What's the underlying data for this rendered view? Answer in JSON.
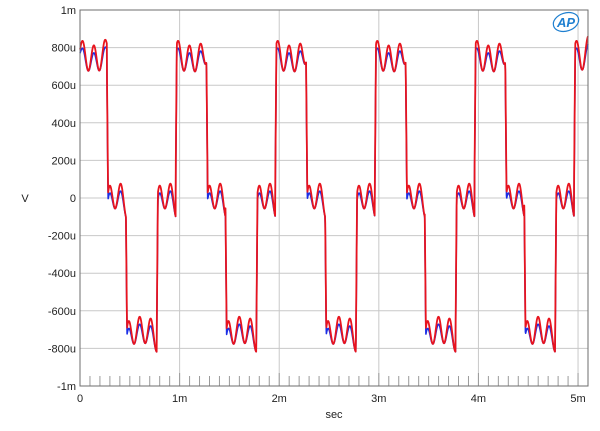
{
  "chart_data": {
    "type": "line",
    "title": "",
    "xlabel": "sec",
    "ylabel": "V",
    "xlim": [
      0,
      0.0051
    ],
    "ylim": [
      -0.001,
      0.001
    ],
    "grid": true,
    "x_ticks": [
      {
        "value": 0,
        "label": "0"
      },
      {
        "value": 0.001,
        "label": "1m"
      },
      {
        "value": 0.002,
        "label": "2m"
      },
      {
        "value": 0.003,
        "label": "3m"
      },
      {
        "value": 0.004,
        "label": "4m"
      },
      {
        "value": 0.005,
        "label": "5m"
      }
    ],
    "y_ticks": [
      {
        "value": 0.001,
        "label": "1m"
      },
      {
        "value": 0.0008,
        "label": "800u"
      },
      {
        "value": 0.0006,
        "label": "600u"
      },
      {
        "value": 0.0004,
        "label": "400u"
      },
      {
        "value": 0.0002,
        "label": "200u"
      },
      {
        "value": 0,
        "label": "0"
      },
      {
        "value": -0.0002,
        "label": "-200u"
      },
      {
        "value": -0.0004,
        "label": "-400u"
      },
      {
        "value": -0.0006,
        "label": "-600u"
      },
      {
        "value": -0.0008,
        "label": "-800u"
      },
      {
        "value": -0.001,
        "label": "-1m"
      }
    ],
    "series": [
      {
        "color": "#1a2ee6",
        "description": "staircase waveform with ringing: high ~720u, low ~-720u, middle step ~0",
        "levels_sequence": [
          [
            0,
            0.00072
          ],
          [
            0.00027,
            0.00072
          ],
          [
            0.00027,
            0.0
          ],
          [
            0.00046,
            0.0
          ],
          [
            0.00046,
            -0.00072
          ],
          [
            0.00077,
            -0.00072
          ],
          [
            0.00077,
            0.0
          ],
          [
            0.00096,
            0.0
          ],
          [
            0.00096,
            0.00072
          ],
          [
            0.00127,
            0.00072
          ],
          [
            0.00127,
            0.0
          ],
          [
            0.00146,
            0.0
          ],
          [
            0.00146,
            -0.00072
          ],
          [
            0.00177,
            -0.00072
          ],
          [
            0.00177,
            0.0
          ],
          [
            0.00196,
            0.0
          ],
          [
            0.00196,
            0.00072
          ],
          [
            0.00227,
            0.00072
          ],
          [
            0.00227,
            0.0
          ],
          [
            0.00246,
            0.0
          ],
          [
            0.00246,
            -0.00072
          ],
          [
            0.00277,
            -0.00072
          ],
          [
            0.00277,
            0.0
          ],
          [
            0.00296,
            0.0
          ],
          [
            0.00296,
            0.00072
          ],
          [
            0.00327,
            0.00072
          ],
          [
            0.00327,
            0.0
          ],
          [
            0.00346,
            0.0
          ],
          [
            0.00346,
            -0.00072
          ],
          [
            0.00377,
            -0.00072
          ],
          [
            0.00377,
            0.0
          ],
          [
            0.00396,
            0.0
          ],
          [
            0.00396,
            0.00072
          ],
          [
            0.00427,
            0.00072
          ],
          [
            0.00427,
            0.0
          ],
          [
            0.00446,
            0.0
          ],
          [
            0.00446,
            -0.00072
          ],
          [
            0.00477,
            -0.00072
          ],
          [
            0.00477,
            0.0
          ],
          [
            0.00496,
            0.0
          ],
          [
            0.00496,
            0.00072
          ],
          [
            0.0051,
            0.00072
          ]
        ]
      },
      {
        "color": "#e8141e",
        "description": "staircase waveform with ringing: high ~740u, low ~-700u, middle step ~20u",
        "levels_sequence": [
          [
            0,
            0.00074
          ],
          [
            0.00027,
            0.00074
          ],
          [
            0.00027,
            2e-05
          ],
          [
            0.00046,
            2e-05
          ],
          [
            0.00046,
            -0.0007
          ],
          [
            0.00077,
            -0.0007
          ],
          [
            0.00077,
            2e-05
          ],
          [
            0.00096,
            2e-05
          ],
          [
            0.00096,
            0.00074
          ],
          [
            0.00127,
            0.00074
          ],
          [
            0.00127,
            2e-05
          ],
          [
            0.00146,
            2e-05
          ],
          [
            0.00146,
            -0.0007
          ],
          [
            0.00177,
            -0.0007
          ],
          [
            0.00177,
            2e-05
          ],
          [
            0.00196,
            2e-05
          ],
          [
            0.00196,
            0.00074
          ],
          [
            0.00227,
            0.00074
          ],
          [
            0.00227,
            2e-05
          ],
          [
            0.00246,
            2e-05
          ],
          [
            0.00246,
            -0.0007
          ],
          [
            0.00277,
            -0.0007
          ],
          [
            0.00277,
            2e-05
          ],
          [
            0.00296,
            2e-05
          ],
          [
            0.00296,
            0.00074
          ],
          [
            0.00327,
            0.00074
          ],
          [
            0.00327,
            2e-05
          ],
          [
            0.00346,
            2e-05
          ],
          [
            0.00346,
            -0.0007
          ],
          [
            0.00377,
            -0.0007
          ],
          [
            0.00377,
            2e-05
          ],
          [
            0.00396,
            2e-05
          ],
          [
            0.00396,
            0.00074
          ],
          [
            0.00427,
            0.00074
          ],
          [
            0.00427,
            2e-05
          ],
          [
            0.00446,
            2e-05
          ],
          [
            0.00446,
            -0.0007
          ],
          [
            0.00477,
            -0.0007
          ],
          [
            0.00477,
            2e-05
          ],
          [
            0.00496,
            2e-05
          ],
          [
            0.00496,
            0.00074
          ],
          [
            0.0051,
            0.00074
          ]
        ]
      }
    ]
  },
  "logo": {
    "text": "AP",
    "color": "#1e7fd0"
  },
  "colors": {
    "grid": "#c8c8c8",
    "frame": "#6e6e6e"
  }
}
